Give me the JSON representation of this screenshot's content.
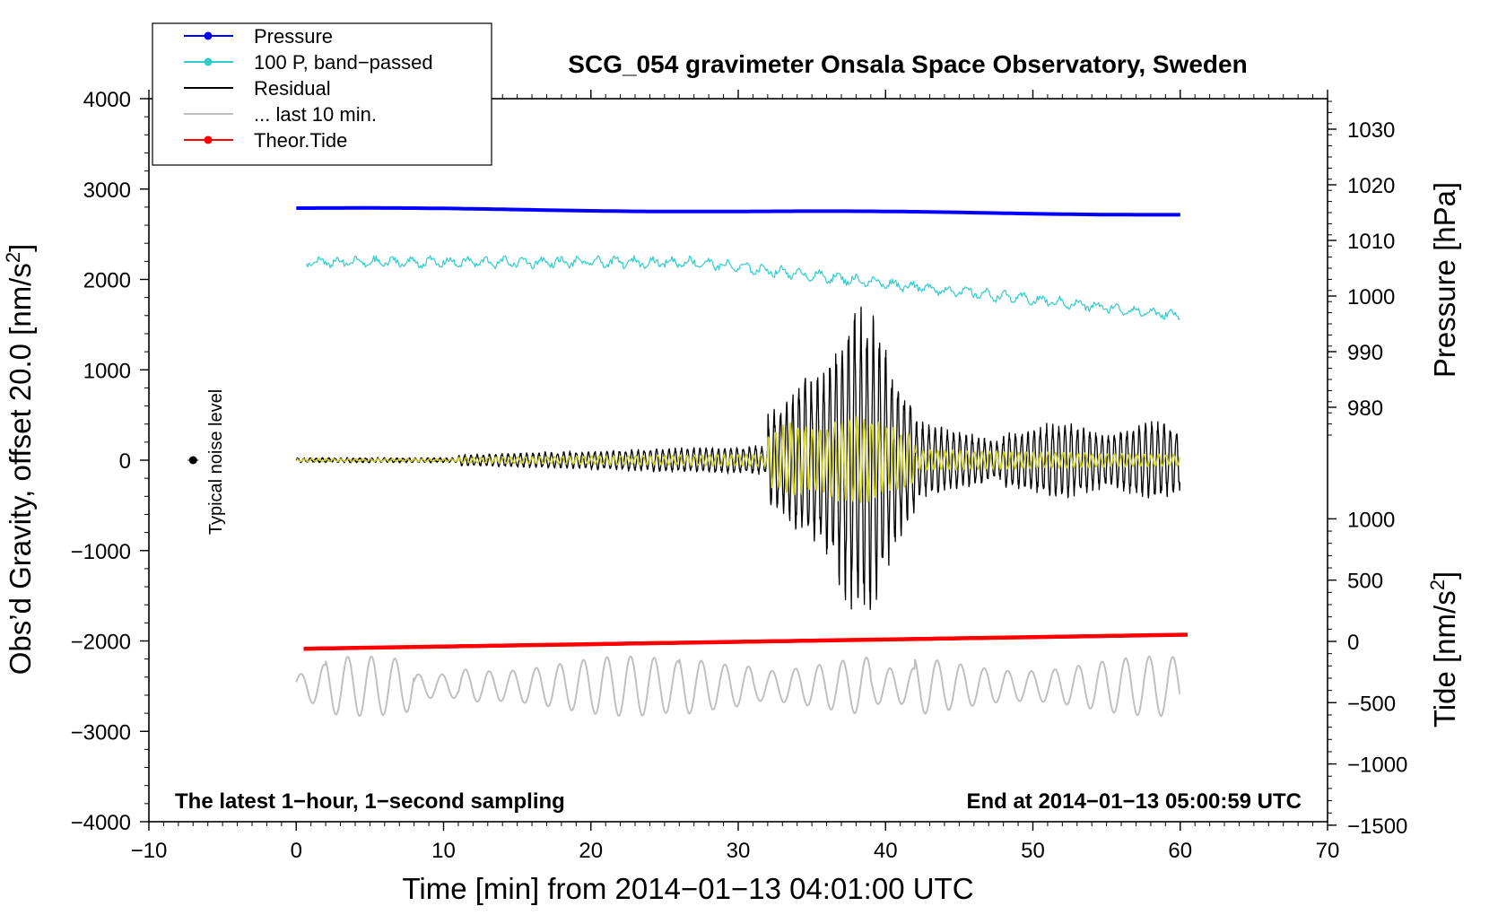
{
  "chart_data": {
    "type": "line",
    "title": "SCG_054 gravimeter Onsala Space Observatory, Sweden",
    "xlabel": "Time [min] from 2014−01−13 04:01:00 UTC",
    "ylabel_left": "Obs’d Gravity, offset 20.0 [nm/s2]",
    "ylabel_left_main": "Obs’d Gravity, offset 20.0 [nm/s",
    "ylabel_left_sup": "2",
    "ylabel_left_end": "]",
    "ylabel_right_top": "Pressure [hPa]",
    "ylabel_right_bottom": "Tide [nm/s2]",
    "ylabel_right_bottom_main": "Tide [nm/s",
    "ylabel_right_bottom_sup": "2",
    "ylabel_right_bottom_end": "]",
    "xlim": [
      -10,
      70
    ],
    "ylim_left": [
      -4000,
      4000
    ],
    "x_ticks": [
      {
        "value": -10,
        "label": "−10"
      },
      {
        "value": 0,
        "label": "0"
      },
      {
        "value": 10,
        "label": "10"
      },
      {
        "value": 20,
        "label": "20"
      },
      {
        "value": 30,
        "label": "30"
      },
      {
        "value": 40,
        "label": "40"
      },
      {
        "value": 50,
        "label": "50"
      },
      {
        "value": 60,
        "label": "60"
      },
      {
        "value": 70,
        "label": "70"
      }
    ],
    "y_left_ticks": [
      {
        "value": 4000,
        "label": "4000"
      },
      {
        "value": 3000,
        "label": "3000"
      },
      {
        "value": 2000,
        "label": "2000"
      },
      {
        "value": 1000,
        "label": "1000"
      },
      {
        "value": 0,
        "label": "0"
      },
      {
        "value": -1000,
        "label": "−1000"
      },
      {
        "value": -2000,
        "label": "−2000"
      },
      {
        "value": -3000,
        "label": "−3000"
      },
      {
        "value": -4000,
        "label": "−4000"
      }
    ],
    "pressure_axis": {
      "ticks": [
        {
          "value": 1030,
          "label": "1030"
        },
        {
          "value": 1020,
          "label": "1020"
        },
        {
          "value": 1010,
          "label": "1010"
        },
        {
          "value": 1000,
          "label": "1000"
        },
        {
          "value": 990,
          "label": "990"
        },
        {
          "value": 980,
          "label": "980"
        }
      ],
      "range": [
        975,
        1035
      ]
    },
    "tide_axis": {
      "ticks": [
        {
          "value": 1000,
          "label": "1000"
        },
        {
          "value": 500,
          "label": "500"
        },
        {
          "value": 0,
          "label": "0"
        },
        {
          "value": -500,
          "label": "−500"
        },
        {
          "value": -1000,
          "label": "−1000"
        },
        {
          "value": -1500,
          "label": "−1500"
        }
      ],
      "range": [
        -1500,
        1000
      ]
    },
    "series": [
      {
        "name": "Pressure",
        "color": "#0000ff",
        "unit": "hPa",
        "start_value": 1015.8,
        "end_value": 1014.7,
        "x_range": [
          0,
          60
        ]
      },
      {
        "name": "100 P, band−passed",
        "color": "#30cccc",
        "unit": "nm/s2",
        "start_value": 2210,
        "mid_value": 2200,
        "end_value": 1600,
        "x_range": [
          0.7,
          60
        ]
      },
      {
        "name": "Residual",
        "color": "#000000",
        "unit": "nm/s2",
        "baseline": 0,
        "max_value": 1850,
        "min_value": -1820,
        "peak_time": 38.3,
        "x_range": [
          0,
          60
        ]
      },
      {
        "name": "... last 10 min.",
        "color": "#c0c0c0",
        "unit": "nm/s2",
        "center_value": -2500,
        "amplitude": 330,
        "x_range": [
          0,
          60
        ]
      },
      {
        "name": "Theor.Tide",
        "color": "#ff0000",
        "unit": "nm/s2 (tide axis)",
        "start_value": -60,
        "end_value": 55,
        "x_range": [
          0.5,
          60.5
        ]
      },
      {
        "name": "band−passed residual",
        "color": "#cccc22",
        "unit": "nm/s2",
        "baseline": 0,
        "max_value": 500,
        "x_range": [
          0,
          60
        ]
      }
    ],
    "annotations": {
      "noise_label": "Typical noise level",
      "noise_x": -7,
      "noise_y": 0,
      "bottom_left_note": "The latest 1−hour, 1−second sampling",
      "bottom_right_note": "End at 2014−01−13 05:00:59 UTC"
    },
    "legend": {
      "placement": "top-left",
      "entries": [
        {
          "label": "Pressure",
          "color": "#0000ff",
          "marker": true
        },
        {
          "label": "100 P, band−passed",
          "color": "#30cccc",
          "marker": true
        },
        {
          "label": "Residual",
          "color": "#000000",
          "marker": false
        },
        {
          "label": "... last 10 min.",
          "color": "#c0c0c0",
          "marker": false
        },
        {
          "label": "Theor.Tide",
          "color": "#ff0000",
          "marker": true
        }
      ]
    }
  }
}
